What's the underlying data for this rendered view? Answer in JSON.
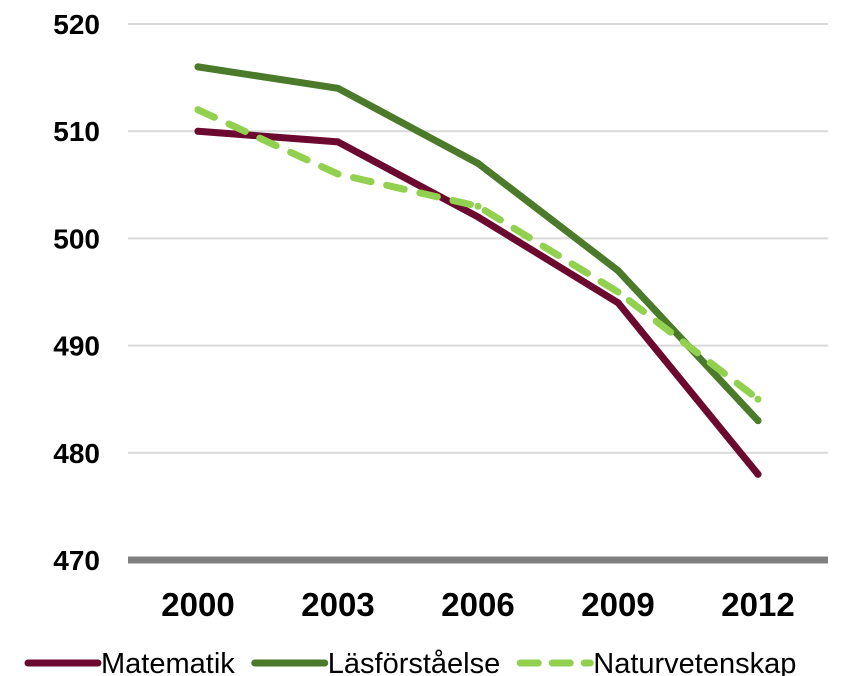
{
  "chart_data": {
    "type": "line",
    "categories": [
      "2000",
      "2003",
      "2006",
      "2009",
      "2012"
    ],
    "series": [
      {
        "name": "Matematik",
        "values": [
          510,
          509,
          502,
          494,
          478
        ],
        "color": "#6b0a2e",
        "dashed": false
      },
      {
        "name": "Läsförståelse",
        "values": [
          516,
          514,
          507,
          497,
          483
        ],
        "color": "#4a7a2a",
        "dashed": false
      },
      {
        "name": "Naturvetenskap",
        "values": [
          512,
          506,
          503,
          495,
          485
        ],
        "color": "#92d050",
        "dashed": true
      }
    ],
    "ylim": [
      470,
      520
    ],
    "yticks": [
      470,
      480,
      490,
      500,
      510,
      520
    ],
    "grid": true,
    "legend_position": "bottom",
    "title": "",
    "xlabel": "",
    "ylabel": "",
    "colors": {
      "grid": "#d9d9d9",
      "baseline": "#808080"
    }
  }
}
